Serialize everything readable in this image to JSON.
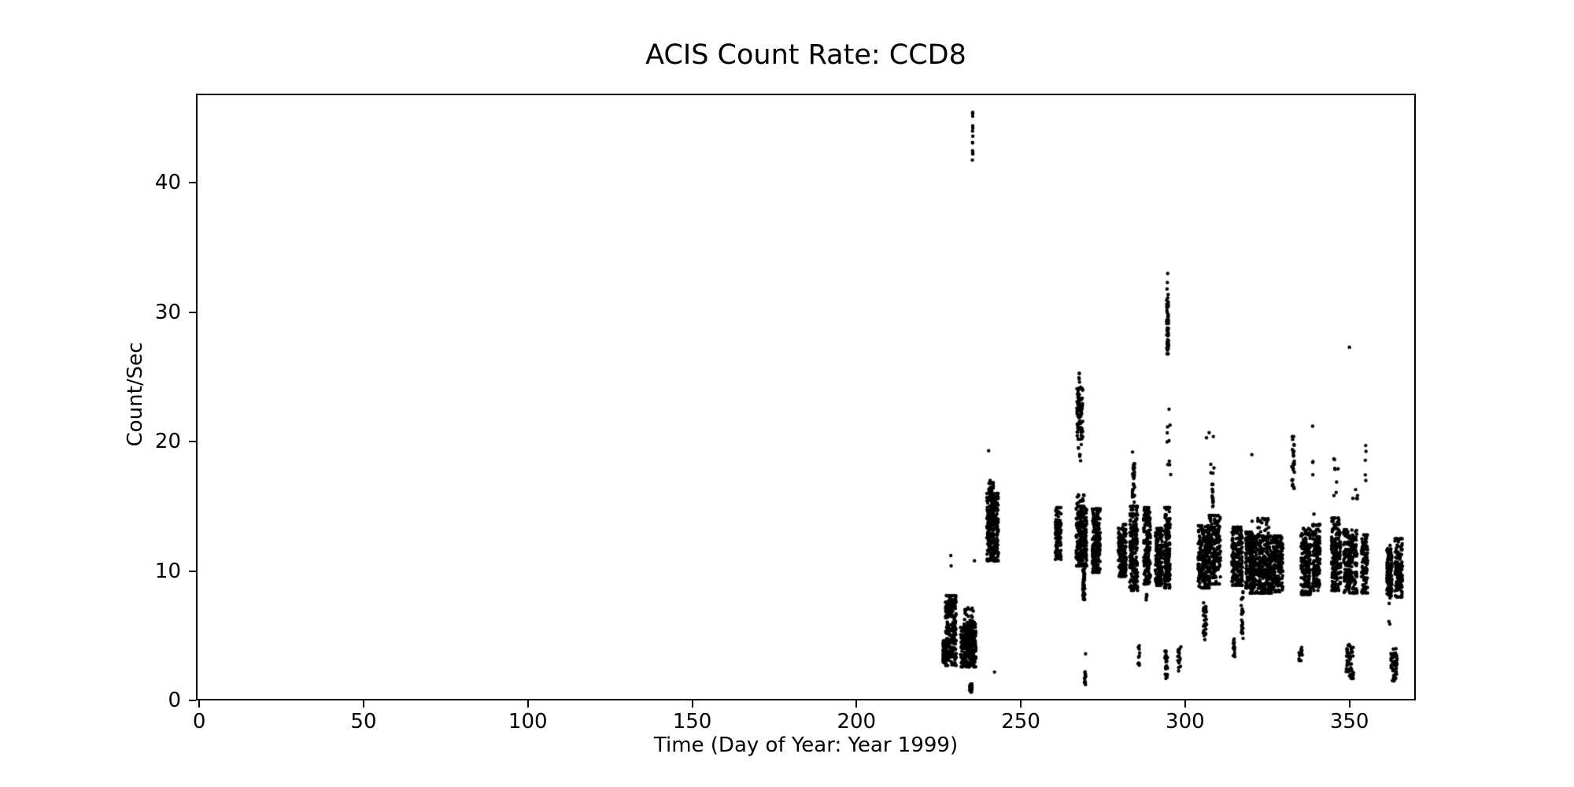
{
  "page": {
    "background": "#ffffff"
  },
  "chart_data": {
    "type": "scatter",
    "title": "ACIS Count Rate: CCD8",
    "xlabel": "Time (Day of Year: Year 1999)",
    "ylabel": "Count/Sec",
    "xlim": [
      -1,
      370.2
    ],
    "ylim": [
      0,
      46.9
    ],
    "x_ticks": [
      0,
      50,
      100,
      150,
      200,
      250,
      300,
      350
    ],
    "y_ticks": [
      0,
      10,
      20,
      30,
      40
    ],
    "grid": false,
    "legend": null,
    "marker": {
      "shape": "circle",
      "color": "#000000",
      "radius_px": 2.2
    },
    "point_clusters": [
      {
        "x0": 226.3,
        "x1": 227.2,
        "y0": 2.9,
        "y1": 4.6,
        "n": 110,
        "cols": 1,
        "dist": "band"
      },
      {
        "x0": 227.0,
        "x1": 230.4,
        "y0": 2.7,
        "y1": 8.1,
        "n": 240,
        "cols": 4,
        "dist": "band"
      },
      {
        "x0": 231.6,
        "x1": 236.4,
        "y0": 2.6,
        "y1": 5.9,
        "n": 260,
        "cols": 5,
        "dist": "band"
      },
      {
        "x0": 232.3,
        "x1": 236.0,
        "y0": 5.9,
        "y1": 7.2,
        "n": 20,
        "cols": 4,
        "dist": "uniform"
      },
      {
        "x0": 234.4,
        "x1": 235.2,
        "y0": 0.5,
        "y1": 1.4,
        "n": 25,
        "cols": 1,
        "dist": "band"
      },
      {
        "x0": 235.2,
        "x1": 235.45,
        "y0": 41.3,
        "y1": 45.9,
        "n": 14,
        "cols": 1,
        "dist": "uniform"
      },
      {
        "x0": 239.6,
        "x1": 243.2,
        "y0": 10.8,
        "y1": 16.0,
        "n": 280,
        "cols": 4,
        "dist": "band"
      },
      {
        "x0": 240.2,
        "x1": 241.8,
        "y0": 15.8,
        "y1": 17.0,
        "n": 25,
        "cols": 2,
        "dist": "uniform"
      },
      {
        "x0": 260.4,
        "x1": 262.3,
        "y0": 10.9,
        "y1": 14.9,
        "n": 110,
        "cols": 2,
        "dist": "band"
      },
      {
        "x0": 267.0,
        "x1": 268.9,
        "y0": 20.2,
        "y1": 24.1,
        "n": 85,
        "cols": 2,
        "dist": "band"
      },
      {
        "x0": 267.2,
        "x1": 268.8,
        "y0": 24.2,
        "y1": 25.3,
        "n": 6,
        "cols": 2,
        "dist": "uniform"
      },
      {
        "x0": 267.4,
        "x1": 268.8,
        "y0": 18.3,
        "y1": 19.8,
        "n": 7,
        "cols": 2,
        "dist": "uniform"
      },
      {
        "x0": 266.8,
        "x1": 270.1,
        "y0": 10.4,
        "y1": 15.0,
        "n": 250,
        "cols": 4,
        "dist": "band"
      },
      {
        "x0": 267.0,
        "x1": 269.5,
        "y0": 15.0,
        "y1": 16.0,
        "n": 15,
        "cols": 3,
        "dist": "uniform"
      },
      {
        "x0": 268.8,
        "x1": 269.6,
        "y0": 7.8,
        "y1": 10.2,
        "n": 45,
        "cols": 1,
        "dist": "band"
      },
      {
        "x0": 269.3,
        "x1": 269.8,
        "y0": 1.2,
        "y1": 2.4,
        "n": 13,
        "cols": 1,
        "dist": "uniform"
      },
      {
        "x0": 271.7,
        "x1": 274.2,
        "y0": 9.9,
        "y1": 14.8,
        "n": 190,
        "cols": 3,
        "dist": "band"
      },
      {
        "x0": 279.6,
        "x1": 282.1,
        "y0": 9.6,
        "y1": 13.6,
        "n": 160,
        "cols": 3,
        "dist": "band"
      },
      {
        "x0": 283.1,
        "x1": 285.6,
        "y0": 8.5,
        "y1": 15.0,
        "n": 200,
        "cols": 3,
        "dist": "band"
      },
      {
        "x0": 283.9,
        "x1": 284.7,
        "y0": 15.0,
        "y1": 18.3,
        "n": 35,
        "cols": 1,
        "dist": "band"
      },
      {
        "x0": 285.6,
        "x1": 286.3,
        "y0": 2.4,
        "y1": 4.3,
        "n": 10,
        "cols": 1,
        "dist": "uniform"
      },
      {
        "x0": 287.3,
        "x1": 289.5,
        "y0": 9.0,
        "y1": 14.9,
        "n": 170,
        "cols": 3,
        "dist": "band"
      },
      {
        "x0": 287.8,
        "x1": 288.4,
        "y0": 7.7,
        "y1": 8.2,
        "n": 5,
        "cols": 1,
        "dist": "uniform"
      },
      {
        "x0": 290.9,
        "x1": 293.1,
        "y0": 8.9,
        "y1": 13.3,
        "n": 160,
        "cols": 3,
        "dist": "band"
      },
      {
        "x0": 293.7,
        "x1": 295.5,
        "y0": 8.7,
        "y1": 14.9,
        "n": 170,
        "cols": 2,
        "dist": "band"
      },
      {
        "x0": 294.3,
        "x1": 295.0,
        "y0": 26.8,
        "y1": 31.4,
        "n": 55,
        "cols": 1,
        "dist": "band"
      },
      {
        "x0": 294.2,
        "x1": 295.8,
        "y0": 16.4,
        "y1": 22.8,
        "n": 10,
        "cols": 2,
        "dist": "uniform"
      },
      {
        "x0": 293.8,
        "x1": 294.7,
        "y0": 1.7,
        "y1": 3.8,
        "n": 28,
        "cols": 1,
        "dist": "band"
      },
      {
        "x0": 297.7,
        "x1": 298.9,
        "y0": 2.2,
        "y1": 4.3,
        "n": 16,
        "cols": 1,
        "dist": "uniform"
      },
      {
        "x0": 303.9,
        "x1": 307.6,
        "y0": 8.7,
        "y1": 13.5,
        "n": 220,
        "cols": 4,
        "dist": "band"
      },
      {
        "x0": 305.4,
        "x1": 306.6,
        "y0": 5.0,
        "y1": 7.6,
        "n": 28,
        "cols": 1,
        "dist": "band"
      },
      {
        "x0": 307.3,
        "x1": 310.8,
        "y0": 9.0,
        "y1": 14.3,
        "n": 170,
        "cols": 4,
        "dist": "band"
      },
      {
        "x0": 308.0,
        "x1": 308.6,
        "y0": 14.6,
        "y1": 16.7,
        "n": 16,
        "cols": 1,
        "dist": "band"
      },
      {
        "x0": 307.6,
        "x1": 308.9,
        "y0": 17.2,
        "y1": 18.4,
        "n": 4,
        "cols": 2,
        "dist": "uniform"
      },
      {
        "x0": 314.1,
        "x1": 317.5,
        "y0": 8.9,
        "y1": 13.4,
        "n": 190,
        "cols": 4,
        "dist": "band"
      },
      {
        "x0": 317.0,
        "x1": 317.7,
        "y0": 4.8,
        "y1": 8.4,
        "n": 28,
        "cols": 1,
        "dist": "band"
      },
      {
        "x0": 314.6,
        "x1": 315.2,
        "y0": 3.2,
        "y1": 4.8,
        "n": 14,
        "cols": 1,
        "dist": "band"
      },
      {
        "x0": 318.4,
        "x1": 320.8,
        "y0": 8.7,
        "y1": 13.0,
        "n": 130,
        "cols": 3,
        "dist": "band"
      },
      {
        "x0": 319.6,
        "x1": 326.5,
        "y0": 8.3,
        "y1": 12.7,
        "n": 380,
        "cols": 7,
        "dist": "band"
      },
      {
        "x0": 320.0,
        "x1": 325.5,
        "y0": 12.8,
        "y1": 14.2,
        "n": 22,
        "cols": 6,
        "dist": "uniform"
      },
      {
        "x0": 326.6,
        "x1": 329.8,
        "y0": 8.4,
        "y1": 12.7,
        "n": 170,
        "cols": 3,
        "dist": "band"
      },
      {
        "x0": 332.4,
        "x1": 333.3,
        "y0": 16.4,
        "y1": 20.4,
        "n": 32,
        "cols": 1,
        "dist": "band"
      },
      {
        "x0": 335.2,
        "x1": 338.3,
        "y0": 8.2,
        "y1": 13.3,
        "n": 180,
        "cols": 3,
        "dist": "band"
      },
      {
        "x0": 334.5,
        "x1": 335.7,
        "y0": 3.0,
        "y1": 4.2,
        "n": 12,
        "cols": 1,
        "dist": "uniform"
      },
      {
        "x0": 338.7,
        "x1": 341.1,
        "y0": 8.5,
        "y1": 13.6,
        "n": 150,
        "cols": 3,
        "dist": "band"
      },
      {
        "x0": 338.7,
        "x1": 339.0,
        "y0": 17.4,
        "y1": 19.3,
        "n": 3,
        "cols": 1,
        "dist": "uniform"
      },
      {
        "x0": 344.5,
        "x1": 347.4,
        "y0": 8.5,
        "y1": 14.1,
        "n": 180,
        "cols": 3,
        "dist": "band"
      },
      {
        "x0": 344.7,
        "x1": 346.9,
        "y0": 15.2,
        "y1": 18.9,
        "n": 8,
        "cols": 3,
        "dist": "uniform"
      },
      {
        "x0": 348.2,
        "x1": 352.4,
        "y0": 8.3,
        "y1": 13.2,
        "n": 210,
        "cols": 4,
        "dist": "band"
      },
      {
        "x0": 353.6,
        "x1": 355.6,
        "y0": 8.3,
        "y1": 12.8,
        "n": 110,
        "cols": 2,
        "dist": "band"
      },
      {
        "x0": 350.8,
        "x1": 352.6,
        "y0": 14.0,
        "y1": 16.6,
        "n": 5,
        "cols": 2,
        "dist": "uniform"
      },
      {
        "x0": 354.6,
        "x1": 355.4,
        "y0": 16.3,
        "y1": 20.0,
        "n": 5,
        "cols": 1,
        "dist": "uniform"
      },
      {
        "x0": 348.9,
        "x1": 351.3,
        "y0": 1.7,
        "y1": 4.4,
        "n": 55,
        "cols": 2,
        "dist": "band"
      },
      {
        "x0": 361.3,
        "x1": 363.0,
        "y0": 7.9,
        "y1": 12.0,
        "n": 120,
        "cols": 2,
        "dist": "band"
      },
      {
        "x0": 363.8,
        "x1": 366.2,
        "y0": 8.0,
        "y1": 12.5,
        "n": 130,
        "cols": 2,
        "dist": "band"
      },
      {
        "x0": 362.6,
        "x1": 364.6,
        "y0": 1.5,
        "y1": 4.0,
        "n": 48,
        "cols": 2,
        "dist": "band"
      }
    ],
    "outlier_points": [
      [
        228.7,
        11.2
      ],
      [
        228.8,
        10.4
      ],
      [
        228.3,
        8.0
      ],
      [
        235.9,
        10.8
      ],
      [
        240.2,
        19.3
      ],
      [
        242.0,
        2.2
      ],
      [
        269.7,
        3.6
      ],
      [
        284.0,
        19.2
      ],
      [
        294.7,
        33.0
      ],
      [
        294.6,
        32.3
      ],
      [
        294.5,
        31.8
      ],
      [
        306.0,
        4.7
      ],
      [
        306.5,
        20.3
      ],
      [
        307.3,
        20.7
      ],
      [
        308.6,
        20.4
      ],
      [
        320.3,
        19.0
      ],
      [
        338.8,
        21.2
      ],
      [
        339.2,
        14.4
      ],
      [
        350.0,
        27.3
      ],
      [
        362.0,
        6.1
      ],
      [
        362.3,
        5.9
      ],
      [
        362.1,
        7.5
      ]
    ]
  }
}
